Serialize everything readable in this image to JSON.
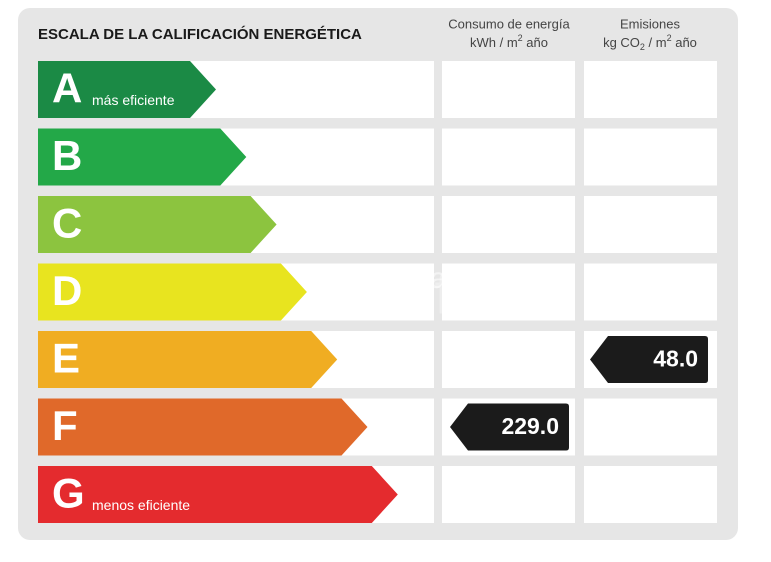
{
  "header": {
    "title": "ESCALA DE LA CALIFICACIÓN ENERGÉTICA",
    "consumption": {
      "title": "Consumo de energía",
      "unit_before": "kWh / m",
      "unit_sup": "2",
      "unit_after": " año"
    },
    "emissions": {
      "title": "Emisiones",
      "unit_a": "kg CO",
      "unit_sub": "2",
      "unit_b": " / m",
      "unit_sup": "2",
      "unit_c": " año"
    }
  },
  "watermark": {
    "brand": "habitaclia",
    "logo": "comfi."
  },
  "ratings": [
    {
      "letter": "A",
      "label": "más eficiente",
      "color": "#1b8a45",
      "consumption": null,
      "emissions": null
    },
    {
      "letter": "B",
      "label": null,
      "color": "#23a848",
      "consumption": null,
      "emissions": null
    },
    {
      "letter": "C",
      "label": null,
      "color": "#8cc43f",
      "consumption": null,
      "emissions": null
    },
    {
      "letter": "D",
      "label": null,
      "color": "#e8e41f",
      "consumption": null,
      "emissions": null
    },
    {
      "letter": "E",
      "label": null,
      "color": "#f0ad22",
      "consumption": null,
      "emissions": "48.0"
    },
    {
      "letter": "F",
      "label": null,
      "color": "#e0692a",
      "consumption": "229.0",
      "emissions": null
    },
    {
      "letter": "G",
      "label": "menos eficiente",
      "color": "#e42b2e",
      "consumption": null,
      "emissions": null
    }
  ]
}
